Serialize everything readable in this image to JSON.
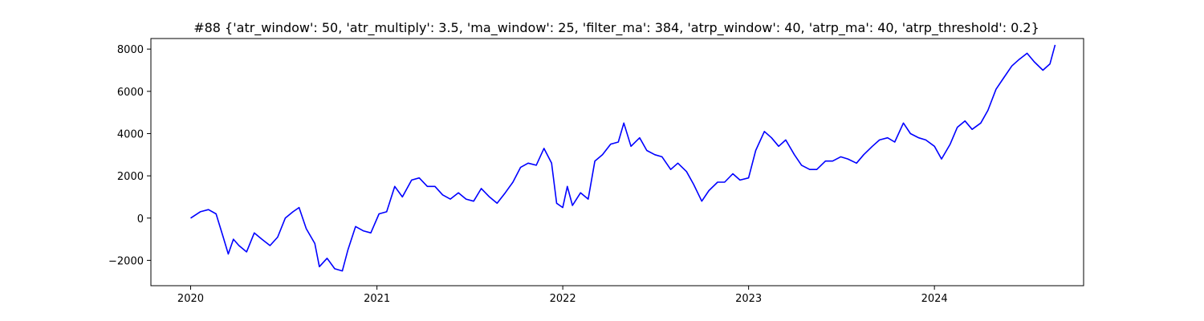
{
  "chart_data": {
    "type": "line",
    "title": "#88 {'atr_window': 50, 'atr_multiply': 3.5, 'ma_window': 25, 'filter_ma': 384, 'atrp_window': 40, 'atrp_ma': 40, 'atrp_threshold': 0.2}",
    "xlabel": "",
    "ylabel": "",
    "x_ticks": [
      "2020",
      "2021",
      "2022",
      "2023",
      "2024"
    ],
    "y_ticks": [
      -2000,
      0,
      2000,
      4000,
      6000,
      8000
    ],
    "xlim": [
      "2019-10-15",
      "2024-10-20"
    ],
    "ylim": [
      -3200,
      8500
    ],
    "grid": false,
    "line_color": "#0000ff",
    "series": [
      {
        "x": [
          "2020-01-01",
          "2020-01-20",
          "2020-02-05",
          "2020-02-20",
          "2020-03-05",
          "2020-03-15",
          "2020-03-25",
          "2020-04-05",
          "2020-04-20",
          "2020-05-05",
          "2020-05-20",
          "2020-06-05",
          "2020-06-20",
          "2020-07-05",
          "2020-07-20",
          "2020-08-01",
          "2020-08-15",
          "2020-09-01",
          "2020-09-10",
          "2020-09-25",
          "2020-10-10",
          "2020-10-25",
          "2020-11-05",
          "2020-11-20",
          "2020-12-05",
          "2020-12-20",
          "2021-01-05",
          "2021-01-20",
          "2021-02-05",
          "2021-02-20",
          "2021-03-10",
          "2021-03-25",
          "2021-04-10",
          "2021-04-25",
          "2021-05-10",
          "2021-05-25",
          "2021-06-10",
          "2021-06-25",
          "2021-07-10",
          "2021-07-25",
          "2021-08-10",
          "2021-08-25",
          "2021-09-10",
          "2021-09-25",
          "2021-10-10",
          "2021-10-25",
          "2021-11-10",
          "2021-11-25",
          "2021-12-10",
          "2021-12-20",
          "2022-01-01",
          "2022-01-10",
          "2022-01-20",
          "2022-02-05",
          "2022-02-20",
          "2022-03-05",
          "2022-03-20",
          "2022-04-05",
          "2022-04-20",
          "2022-05-01",
          "2022-05-15",
          "2022-06-01",
          "2022-06-15",
          "2022-07-01",
          "2022-07-15",
          "2022-08-01",
          "2022-08-15",
          "2022-09-01",
          "2022-09-15",
          "2022-10-01",
          "2022-10-15",
          "2022-11-01",
          "2022-11-15",
          "2022-12-01",
          "2022-12-15",
          "2023-01-01",
          "2023-01-15",
          "2023-02-01",
          "2023-02-15",
          "2023-03-01",
          "2023-03-15",
          "2023-04-01",
          "2023-04-15",
          "2023-05-01",
          "2023-05-15",
          "2023-06-01",
          "2023-06-15",
          "2023-07-01",
          "2023-07-15",
          "2023-08-01",
          "2023-08-15",
          "2023-09-01",
          "2023-09-15",
          "2023-10-01",
          "2023-10-15",
          "2023-11-01",
          "2023-11-15",
          "2023-12-01",
          "2023-12-15",
          "2024-01-01",
          "2024-01-15",
          "2024-02-01",
          "2024-02-15",
          "2024-03-01",
          "2024-03-15",
          "2024-04-01",
          "2024-04-15",
          "2024-05-01",
          "2024-05-15",
          "2024-06-01",
          "2024-06-15",
          "2024-07-01",
          "2024-07-15",
          "2024-08-01",
          "2024-08-15",
          "2024-08-25"
        ],
        "values": [
          0,
          300,
          400,
          200,
          -900,
          -1700,
          -1000,
          -1300,
          -1600,
          -700,
          -1000,
          -1300,
          -900,
          0,
          300,
          500,
          -500,
          -1200,
          -2300,
          -1900,
          -2400,
          -2500,
          -1500,
          -400,
          -600,
          -700,
          200,
          300,
          1500,
          1000,
          1800,
          1900,
          1500,
          1500,
          1100,
          900,
          1200,
          900,
          800,
          1400,
          1000,
          700,
          1200,
          1700,
          2400,
          2600,
          2500,
          3300,
          2600,
          700,
          500,
          1500,
          600,
          1200,
          900,
          2700,
          3000,
          3500,
          3600,
          4500,
          3400,
          3800,
          3200,
          3000,
          2900,
          2300,
          2600,
          2200,
          1600,
          800,
          1300,
          1700,
          1700,
          2100,
          1800,
          1900,
          3200,
          4100,
          3800,
          3400,
          3700,
          3000,
          2500,
          2300,
          2300,
          2700,
          2700,
          2900,
          2800,
          2600,
          3000,
          3400,
          3700,
          3800,
          3600,
          4500,
          4000,
          3800,
          3700,
          3400,
          2800,
          3500,
          4300,
          4600,
          4200,
          4500,
          5100,
          6100,
          6600,
          7200,
          7500,
          7800,
          7400,
          7000,
          7300,
          8200
        ]
      }
    ]
  }
}
